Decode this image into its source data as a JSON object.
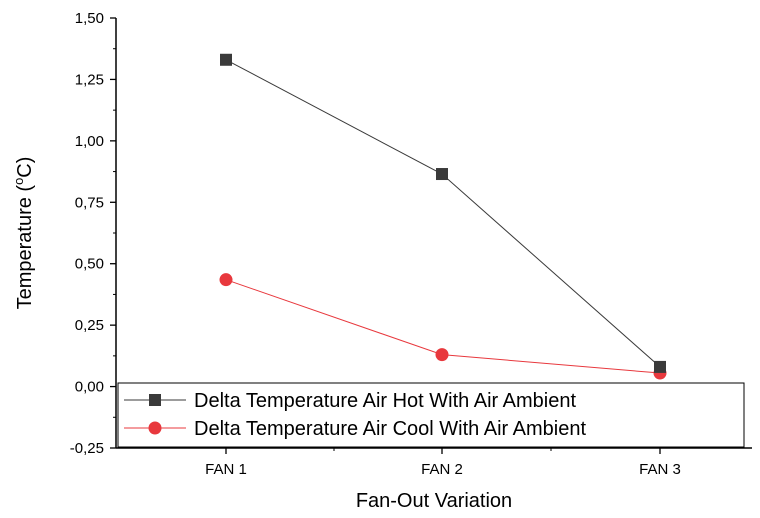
{
  "chart_data": {
    "type": "line",
    "title": "",
    "xlabel": "Fan-Out Variation",
    "ylabel_main": "Temperature (",
    "ylabel_sup": "o",
    "ylabel_end": "C)",
    "categories": [
      "FAN 1",
      "FAN 2",
      "FAN 3"
    ],
    "ylim": [
      -0.25,
      1.5
    ],
    "yticks": [
      "-0,25",
      "0,00",
      "0,25",
      "0,50",
      "0,75",
      "1,00",
      "1,25",
      "1,50"
    ],
    "grid": false,
    "legend_position": "bottom-left",
    "series": [
      {
        "name": "Delta Temperature Air Hot With Air Ambient",
        "values": [
          1.33,
          0.865,
          0.08
        ],
        "color": "#3a3a3a",
        "marker": "square"
      },
      {
        "name": "Delta Temperature Air Cool With Air Ambient",
        "values": [
          0.435,
          0.13,
          0.055
        ],
        "color": "#e8383d",
        "marker": "circle"
      }
    ]
  }
}
